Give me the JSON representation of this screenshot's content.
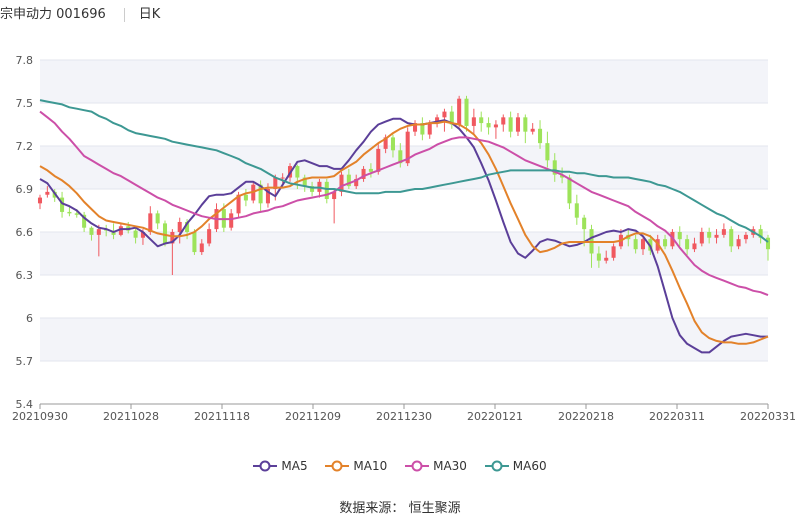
{
  "header": {
    "stock_label": "宗申动力 001696",
    "period_label": "日K"
  },
  "source": {
    "label": "数据来源：",
    "name": "恒生聚源"
  },
  "colors": {
    "up": "#f0585f",
    "down": "#9de35a",
    "ma5": "#5b3f99",
    "ma10": "#e3822a",
    "ma30": "#cc4fa8",
    "ma60": "#3d9893",
    "grid": "#e3e6ee",
    "band": "#f3f4f9"
  },
  "chart_data": {
    "type": "candlestick",
    "x_ticks": [
      "20210930",
      "20211028",
      "20211118",
      "20211209",
      "20211230",
      "20220121",
      "20220218",
      "20220311",
      "20220331"
    ],
    "y_ticks": [
      "7.8",
      "7.5",
      "7.2",
      "6.9",
      "6.6",
      "6.3",
      "6",
      "5.7",
      "5.4"
    ],
    "ylim": [
      5.4,
      7.8
    ],
    "grid": true,
    "legend_position": "bottom",
    "series": [
      {
        "name": "MA5",
        "values": [
          6.97,
          6.94,
          6.87,
          6.8,
          6.78,
          6.75,
          6.7,
          6.66,
          6.63,
          6.62,
          6.6,
          6.62,
          6.62,
          6.63,
          6.6,
          6.55,
          6.5,
          6.52,
          6.53,
          6.58,
          6.66,
          6.72,
          6.79,
          6.85,
          6.86,
          6.86,
          6.87,
          6.91,
          6.95,
          6.95,
          6.92,
          6.88,
          6.85,
          6.93,
          7.01,
          7.09,
          7.1,
          7.08,
          7.06,
          7.06,
          7.04,
          7.04,
          7.1,
          7.17,
          7.23,
          7.3,
          7.35,
          7.37,
          7.39,
          7.39,
          7.36,
          7.35,
          7.35,
          7.36,
          7.37,
          7.38,
          7.36,
          7.32,
          7.26,
          7.19,
          7.08,
          6.96,
          6.82,
          6.67,
          6.53,
          6.45,
          6.42,
          6.47,
          6.53,
          6.55,
          6.54,
          6.52,
          6.5,
          6.51,
          6.53,
          6.56,
          6.58,
          6.6,
          6.61,
          6.6,
          6.62,
          6.61,
          6.57,
          6.5,
          6.36,
          6.18,
          6.0,
          5.88,
          5.82,
          5.79,
          5.76,
          5.76,
          5.8,
          5.84,
          5.87,
          5.88,
          5.89,
          5.88,
          5.87,
          5.87
        ]
      },
      {
        "name": "MA10",
        "values": [
          7.06,
          7.03,
          6.99,
          6.96,
          6.92,
          6.87,
          6.81,
          6.76,
          6.71,
          6.68,
          6.67,
          6.66,
          6.65,
          6.64,
          6.63,
          6.61,
          6.59,
          6.58,
          6.57,
          6.57,
          6.58,
          6.6,
          6.64,
          6.69,
          6.73,
          6.77,
          6.81,
          6.85,
          6.87,
          6.88,
          6.9,
          6.91,
          6.91,
          6.91,
          6.92,
          6.95,
          6.97,
          6.98,
          6.98,
          6.98,
          6.99,
          7.03,
          7.06,
          7.09,
          7.14,
          7.18,
          7.22,
          7.25,
          7.29,
          7.32,
          7.34,
          7.35,
          7.35,
          7.36,
          7.36,
          7.37,
          7.36,
          7.35,
          7.32,
          7.28,
          7.22,
          7.14,
          7.04,
          6.92,
          6.8,
          6.69,
          6.58,
          6.5,
          6.46,
          6.47,
          6.49,
          6.52,
          6.53,
          6.53,
          6.53,
          6.53,
          6.53,
          6.53,
          6.53,
          6.54,
          6.57,
          6.59,
          6.59,
          6.57,
          6.52,
          6.44,
          6.33,
          6.21,
          6.1,
          5.98,
          5.9,
          5.86,
          5.84,
          5.83,
          5.83,
          5.82,
          5.82,
          5.83,
          5.85,
          5.87
        ]
      },
      {
        "name": "MA30",
        "values": [
          7.44,
          7.4,
          7.36,
          7.3,
          7.25,
          7.19,
          7.13,
          7.1,
          7.07,
          7.04,
          7.01,
          6.99,
          6.96,
          6.93,
          6.9,
          6.87,
          6.84,
          6.82,
          6.79,
          6.77,
          6.75,
          6.73,
          6.71,
          6.7,
          6.69,
          6.69,
          6.69,
          6.7,
          6.71,
          6.73,
          6.74,
          6.75,
          6.77,
          6.78,
          6.8,
          6.82,
          6.83,
          6.84,
          6.85,
          6.86,
          6.88,
          6.92,
          6.94,
          6.96,
          6.99,
          7.01,
          7.03,
          7.05,
          7.07,
          7.09,
          7.11,
          7.14,
          7.16,
          7.18,
          7.21,
          7.23,
          7.25,
          7.26,
          7.26,
          7.25,
          7.24,
          7.23,
          7.21,
          7.19,
          7.16,
          7.13,
          7.1,
          7.08,
          7.06,
          7.04,
          7.02,
          7.0,
          6.97,
          6.94,
          6.91,
          6.88,
          6.86,
          6.84,
          6.82,
          6.8,
          6.78,
          6.74,
          6.71,
          6.68,
          6.64,
          6.61,
          6.56,
          6.49,
          6.43,
          6.37,
          6.33,
          6.3,
          6.28,
          6.26,
          6.24,
          6.22,
          6.21,
          6.19,
          6.18,
          6.16
        ]
      },
      {
        "name": "MA60",
        "values": [
          7.52,
          7.51,
          7.5,
          7.49,
          7.47,
          7.46,
          7.45,
          7.44,
          7.41,
          7.39,
          7.36,
          7.34,
          7.31,
          7.29,
          7.28,
          7.27,
          7.26,
          7.25,
          7.23,
          7.22,
          7.21,
          7.2,
          7.19,
          7.18,
          7.17,
          7.15,
          7.13,
          7.11,
          7.08,
          7.06,
          7.04,
          7.01,
          6.98,
          6.96,
          6.94,
          6.93,
          6.92,
          6.91,
          6.91,
          6.9,
          6.9,
          6.89,
          6.88,
          6.87,
          6.87,
          6.87,
          6.87,
          6.88,
          6.88,
          6.88,
          6.89,
          6.9,
          6.9,
          6.91,
          6.92,
          6.93,
          6.94,
          6.95,
          6.96,
          6.97,
          6.98,
          7.0,
          7.01,
          7.02,
          7.03,
          7.03,
          7.03,
          7.03,
          7.03,
          7.03,
          7.03,
          7.02,
          7.02,
          7.01,
          7.01,
          7.0,
          6.99,
          6.99,
          6.98,
          6.98,
          6.98,
          6.97,
          6.96,
          6.95,
          6.93,
          6.92,
          6.9,
          6.88,
          6.85,
          6.82,
          6.79,
          6.76,
          6.73,
          6.71,
          6.68,
          6.65,
          6.63,
          6.6,
          6.57,
          6.53
        ]
      }
    ],
    "candles": [
      [
        6.8,
        6.84,
        6.86,
        6.76
      ],
      [
        6.86,
        6.88,
        6.92,
        6.84
      ],
      [
        6.88,
        6.84,
        6.9,
        6.81
      ],
      [
        6.84,
        6.74,
        6.88,
        6.7
      ],
      [
        6.74,
        6.73,
        6.78,
        6.71
      ],
      [
        6.73,
        6.72,
        6.76,
        6.7
      ],
      [
        6.72,
        6.63,
        6.74,
        6.6
      ],
      [
        6.63,
        6.58,
        6.64,
        6.54
      ],
      [
        6.58,
        6.62,
        6.65,
        6.43
      ],
      [
        6.62,
        6.61,
        6.65,
        6.57
      ],
      [
        6.61,
        6.58,
        6.66,
        6.55
      ],
      [
        6.58,
        6.64,
        6.66,
        6.57
      ],
      [
        6.64,
        6.61,
        6.67,
        6.59
      ],
      [
        6.61,
        6.56,
        6.63,
        6.52
      ],
      [
        6.56,
        6.6,
        6.62,
        6.51
      ],
      [
        6.6,
        6.73,
        6.78,
        6.58
      ],
      [
        6.73,
        6.66,
        6.75,
        6.62
      ],
      [
        6.66,
        6.52,
        6.68,
        6.5
      ],
      [
        6.52,
        6.6,
        6.62,
        6.3
      ],
      [
        6.6,
        6.67,
        6.7,
        6.52
      ],
      [
        6.67,
        6.6,
        6.69,
        6.55
      ],
      [
        6.6,
        6.46,
        6.62,
        6.44
      ],
      [
        6.46,
        6.52,
        6.55,
        6.44
      ],
      [
        6.52,
        6.62,
        6.66,
        6.5
      ],
      [
        6.62,
        6.76,
        6.8,
        6.6
      ],
      [
        6.76,
        6.63,
        6.8,
        6.6
      ],
      [
        6.63,
        6.73,
        6.76,
        6.61
      ],
      [
        6.73,
        6.86,
        6.88,
        6.7
      ],
      [
        6.86,
        6.82,
        6.9,
        6.78
      ],
      [
        6.82,
        6.93,
        6.95,
        6.8
      ],
      [
        6.93,
        6.8,
        6.96,
        6.74
      ],
      [
        6.8,
        6.9,
        6.94,
        6.77
      ],
      [
        6.9,
        6.98,
        7.0,
        6.82
      ],
      [
        6.98,
        6.98,
        7.01,
        6.94
      ],
      [
        6.98,
        7.06,
        7.08,
        6.95
      ],
      [
        7.06,
        6.98,
        7.07,
        6.9
      ],
      [
        6.98,
        6.92,
        7.0,
        6.88
      ],
      [
        6.92,
        6.88,
        6.95,
        6.85
      ],
      [
        6.88,
        6.95,
        6.97,
        6.84
      ],
      [
        6.95,
        6.83,
        6.97,
        6.8
      ],
      [
        6.83,
        6.88,
        6.9,
        6.66
      ],
      [
        6.88,
        7.0,
        7.02,
        6.85
      ],
      [
        7.0,
        6.92,
        7.04,
        6.9
      ],
      [
        6.92,
        6.97,
        7.0,
        6.9
      ],
      [
        6.97,
        7.04,
        7.06,
        6.95
      ],
      [
        7.04,
        7.02,
        7.08,
        6.98
      ],
      [
        7.02,
        7.18,
        7.22,
        7.0
      ],
      [
        7.18,
        7.26,
        7.28,
        7.15
      ],
      [
        7.26,
        7.17,
        7.28,
        7.12
      ],
      [
        7.17,
        7.08,
        7.22,
        7.05
      ],
      [
        7.08,
        7.3,
        7.33,
        7.06
      ],
      [
        7.3,
        7.36,
        7.38,
        7.27
      ],
      [
        7.36,
        7.28,
        7.4,
        7.24
      ],
      [
        7.28,
        7.36,
        7.38,
        7.25
      ],
      [
        7.36,
        7.4,
        7.42,
        7.33
      ],
      [
        7.4,
        7.44,
        7.46,
        7.3
      ],
      [
        7.44,
        7.35,
        7.48,
        7.32
      ],
      [
        7.35,
        7.53,
        7.55,
        7.33
      ],
      [
        7.53,
        7.34,
        7.55,
        7.3
      ],
      [
        7.34,
        7.4,
        7.46,
        7.28
      ],
      [
        7.4,
        7.36,
        7.44,
        7.3
      ],
      [
        7.36,
        7.33,
        7.4,
        7.28
      ],
      [
        7.33,
        7.35,
        7.38,
        7.25
      ],
      [
        7.35,
        7.4,
        7.42,
        7.3
      ],
      [
        7.4,
        7.3,
        7.44,
        7.26
      ],
      [
        7.3,
        7.4,
        7.43,
        7.27
      ],
      [
        7.4,
        7.3,
        7.42,
        7.22
      ],
      [
        7.3,
        7.32,
        7.36,
        7.28
      ],
      [
        7.32,
        7.22,
        7.38,
        7.18
      ],
      [
        7.22,
        7.1,
        7.3,
        7.05
      ],
      [
        7.1,
        7.0,
        7.15,
        6.95
      ],
      [
        7.0,
        6.98,
        7.05,
        6.94
      ],
      [
        6.98,
        6.8,
        7.0,
        6.76
      ],
      [
        6.8,
        6.7,
        6.86,
        6.65
      ],
      [
        6.7,
        6.62,
        6.72,
        6.5
      ],
      [
        6.62,
        6.45,
        6.65,
        6.35
      ],
      [
        6.45,
        6.4,
        6.5,
        6.35
      ],
      [
        6.4,
        6.42,
        6.47,
        6.38
      ],
      [
        6.42,
        6.5,
        6.52,
        6.4
      ],
      [
        6.5,
        6.58,
        6.62,
        6.48
      ],
      [
        6.58,
        6.55,
        6.62,
        6.5
      ],
      [
        6.55,
        6.48,
        6.58,
        6.45
      ],
      [
        6.48,
        6.55,
        6.57,
        6.44
      ],
      [
        6.55,
        6.47,
        6.58,
        6.44
      ],
      [
        6.47,
        6.55,
        6.58,
        6.45
      ],
      [
        6.55,
        6.5,
        6.58,
        6.48
      ],
      [
        6.5,
        6.6,
        6.62,
        6.48
      ],
      [
        6.6,
        6.55,
        6.64,
        6.5
      ],
      [
        6.55,
        6.48,
        6.58,
        6.44
      ],
      [
        6.48,
        6.52,
        6.56,
        6.46
      ],
      [
        6.52,
        6.6,
        6.63,
        6.5
      ],
      [
        6.6,
        6.56,
        6.63,
        6.52
      ],
      [
        6.56,
        6.58,
        6.62,
        6.52
      ],
      [
        6.58,
        6.62,
        6.66,
        6.56
      ],
      [
        6.62,
        6.5,
        6.64,
        6.46
      ],
      [
        6.5,
        6.55,
        6.58,
        6.48
      ],
      [
        6.55,
        6.58,
        6.6,
        6.52
      ],
      [
        6.58,
        6.62,
        6.64,
        6.56
      ],
      [
        6.62,
        6.56,
        6.65,
        6.52
      ],
      [
        6.56,
        6.48,
        6.58,
        6.4
      ]
    ]
  }
}
